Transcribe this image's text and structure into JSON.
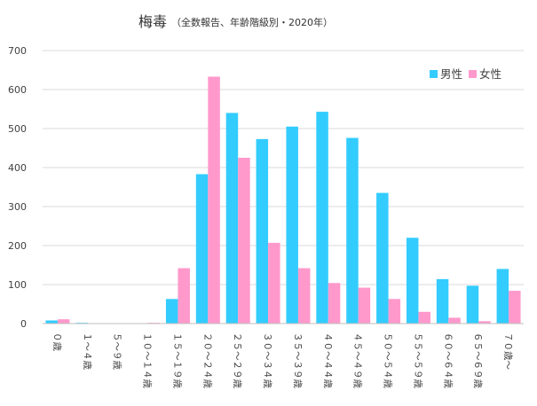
{
  "chart_data": {
    "type": "bar",
    "title": "梅毒",
    "subtitle": "（全数報告、年齢階級別・2020年）",
    "xlabel": "",
    "ylabel": "",
    "ylim": [
      0,
      700
    ],
    "yticks": [
      0,
      100,
      200,
      300,
      400,
      500,
      600,
      700
    ],
    "grid": "horizontal",
    "legend_position": "top-right",
    "tick_label_orientation": "vertical",
    "categories": [
      "０歳",
      "１～４歳",
      "５～９歳",
      "１０～１４歳",
      "１５～１９歳",
      "２０～２４歳",
      "２５～２９歳",
      "３０～３４歳",
      "３５～３９歳",
      "４０～４４歳",
      "４５～４９歳",
      "５０～５４歳",
      "５５～５９歳",
      "６０～６４歳",
      "６５～６９歳",
      "７０歳～"
    ],
    "series": [
      {
        "name": "男性",
        "color": "#33ccff",
        "values": [
          8,
          2,
          0,
          0,
          63,
          383,
          540,
          473,
          505,
          543,
          476,
          335,
          220,
          114,
          97,
          140
        ]
      },
      {
        "name": "女性",
        "color": "#ff99cc",
        "values": [
          11,
          1,
          0,
          2,
          142,
          633,
          425,
          207,
          142,
          104,
          92,
          63,
          30,
          15,
          6,
          84
        ]
      }
    ]
  }
}
